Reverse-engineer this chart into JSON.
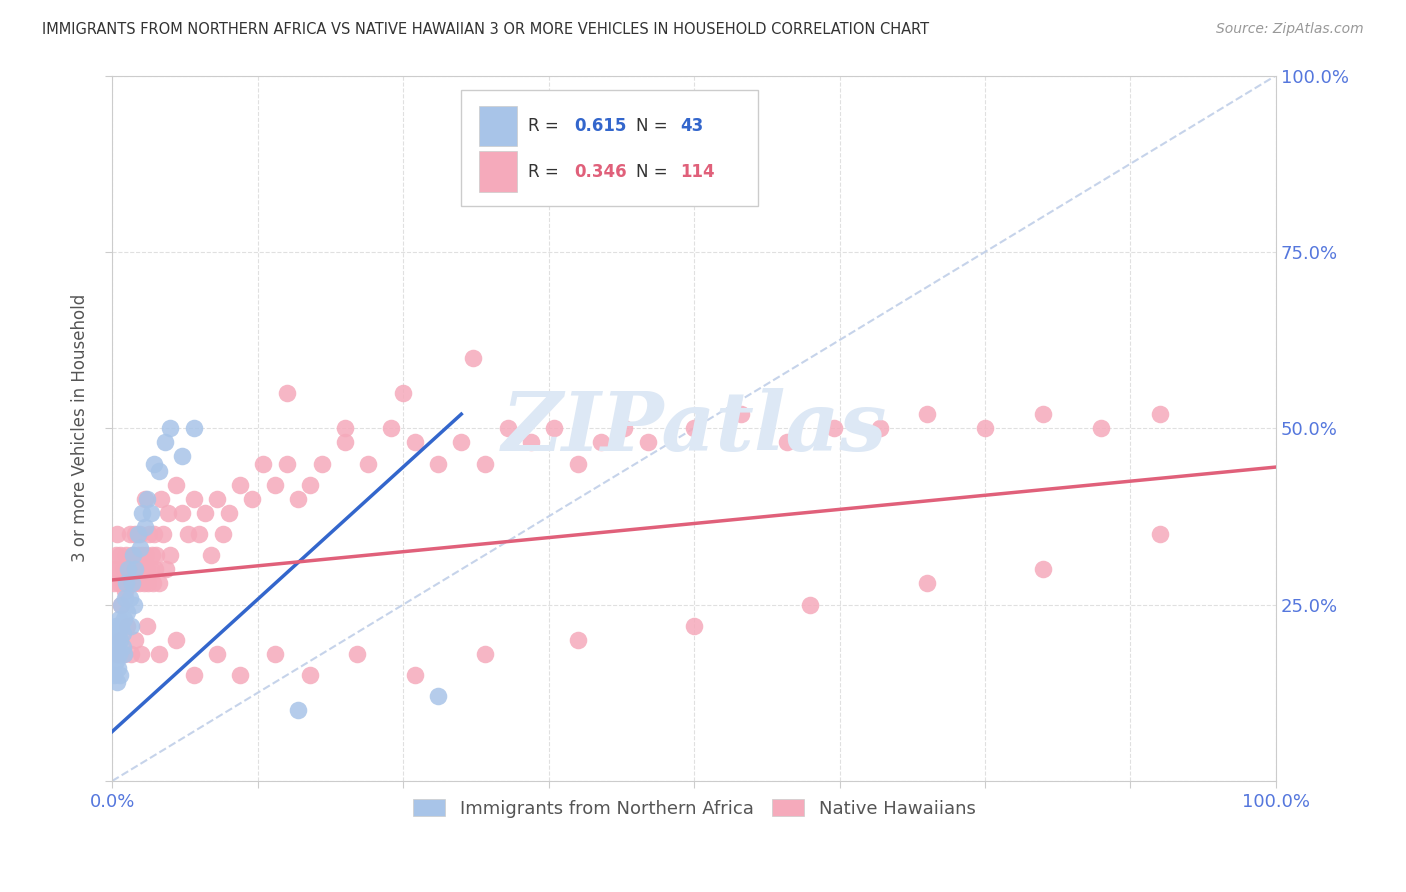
{
  "title": "IMMIGRANTS FROM NORTHERN AFRICA VS NATIVE HAWAIIAN 3 OR MORE VEHICLES IN HOUSEHOLD CORRELATION CHART",
  "source": "Source: ZipAtlas.com",
  "ylabel": "3 or more Vehicles in Household",
  "ytick_labels": [
    "",
    "25.0%",
    "50.0%",
    "75.0%",
    "100.0%"
  ],
  "ytick_vals": [
    0.0,
    0.25,
    0.5,
    0.75,
    1.0
  ],
  "xtick_vals": [
    0.0,
    0.125,
    0.25,
    0.375,
    0.5,
    0.625,
    0.75,
    0.875,
    1.0
  ],
  "xlim": [
    0.0,
    1.0
  ],
  "ylim": [
    0.0,
    1.0
  ],
  "blue_R": 0.615,
  "blue_N": 43,
  "pink_R": 0.346,
  "pink_N": 114,
  "blue_color": "#a8c4e8",
  "pink_color": "#f5aabb",
  "blue_line_color": "#3366cc",
  "pink_line_color": "#e0607a",
  "diag_line_color": "#c0cfe8",
  "watermark_text": "ZIPatlas",
  "watermark_color": "#dde8f5",
  "title_color": "#333333",
  "right_axis_color": "#5577dd",
  "bottom_axis_color": "#5577dd",
  "legend_label1": "Immigrants from Northern Africa",
  "legend_label2": "Native Hawaiians",
  "blue_scatter_x": [
    0.001,
    0.002,
    0.002,
    0.003,
    0.003,
    0.004,
    0.004,
    0.005,
    0.005,
    0.006,
    0.006,
    0.007,
    0.007,
    0.008,
    0.008,
    0.009,
    0.009,
    0.01,
    0.01,
    0.011,
    0.012,
    0.013,
    0.014,
    0.015,
    0.016,
    0.017,
    0.018,
    0.019,
    0.02,
    0.022,
    0.024,
    0.026,
    0.028,
    0.03,
    0.033,
    0.036,
    0.04,
    0.045,
    0.05,
    0.06,
    0.07,
    0.16,
    0.28
  ],
  "blue_scatter_y": [
    0.18,
    0.2,
    0.15,
    0.22,
    0.17,
    0.19,
    0.14,
    0.21,
    0.16,
    0.23,
    0.18,
    0.2,
    0.15,
    0.22,
    0.25,
    0.19,
    0.21,
    0.23,
    0.18,
    0.26,
    0.28,
    0.24,
    0.3,
    0.26,
    0.22,
    0.28,
    0.32,
    0.25,
    0.3,
    0.35,
    0.33,
    0.38,
    0.36,
    0.4,
    0.38,
    0.45,
    0.44,
    0.48,
    0.5,
    0.46,
    0.5,
    0.1,
    0.12
  ],
  "pink_scatter_x": [
    0.001,
    0.002,
    0.003,
    0.004,
    0.005,
    0.006,
    0.007,
    0.008,
    0.009,
    0.01,
    0.011,
    0.012,
    0.013,
    0.014,
    0.015,
    0.016,
    0.017,
    0.018,
    0.019,
    0.02,
    0.021,
    0.022,
    0.023,
    0.024,
    0.025,
    0.026,
    0.027,
    0.028,
    0.029,
    0.03,
    0.031,
    0.032,
    0.033,
    0.034,
    0.035,
    0.036,
    0.037,
    0.038,
    0.04,
    0.042,
    0.044,
    0.046,
    0.048,
    0.05,
    0.055,
    0.06,
    0.065,
    0.07,
    0.075,
    0.08,
    0.085,
    0.09,
    0.095,
    0.1,
    0.11,
    0.12,
    0.13,
    0.14,
    0.15,
    0.16,
    0.17,
    0.18,
    0.2,
    0.22,
    0.24,
    0.26,
    0.28,
    0.3,
    0.32,
    0.34,
    0.36,
    0.38,
    0.4,
    0.42,
    0.44,
    0.46,
    0.5,
    0.54,
    0.58,
    0.62,
    0.66,
    0.7,
    0.75,
    0.8,
    0.85,
    0.9,
    0.004,
    0.007,
    0.01,
    0.013,
    0.016,
    0.02,
    0.025,
    0.03,
    0.04,
    0.055,
    0.07,
    0.09,
    0.11,
    0.14,
    0.17,
    0.21,
    0.26,
    0.32,
    0.4,
    0.5,
    0.6,
    0.7,
    0.8,
    0.9,
    0.15,
    0.2,
    0.25,
    0.31
  ],
  "pink_scatter_y": [
    0.3,
    0.28,
    0.32,
    0.35,
    0.3,
    0.28,
    0.32,
    0.25,
    0.28,
    0.3,
    0.27,
    0.32,
    0.29,
    0.3,
    0.35,
    0.28,
    0.32,
    0.3,
    0.28,
    0.35,
    0.3,
    0.32,
    0.28,
    0.35,
    0.3,
    0.32,
    0.28,
    0.4,
    0.32,
    0.3,
    0.28,
    0.35,
    0.3,
    0.32,
    0.28,
    0.35,
    0.3,
    0.32,
    0.28,
    0.4,
    0.35,
    0.3,
    0.38,
    0.32,
    0.42,
    0.38,
    0.35,
    0.4,
    0.35,
    0.38,
    0.32,
    0.4,
    0.35,
    0.38,
    0.42,
    0.4,
    0.45,
    0.42,
    0.45,
    0.4,
    0.42,
    0.45,
    0.48,
    0.45,
    0.5,
    0.48,
    0.45,
    0.48,
    0.45,
    0.5,
    0.48,
    0.5,
    0.45,
    0.48,
    0.5,
    0.48,
    0.5,
    0.52,
    0.48,
    0.5,
    0.5,
    0.52,
    0.5,
    0.52,
    0.5,
    0.52,
    0.18,
    0.2,
    0.18,
    0.22,
    0.18,
    0.2,
    0.18,
    0.22,
    0.18,
    0.2,
    0.15,
    0.18,
    0.15,
    0.18,
    0.15,
    0.18,
    0.15,
    0.18,
    0.2,
    0.22,
    0.25,
    0.28,
    0.3,
    0.35,
    0.55,
    0.5,
    0.55,
    0.6
  ],
  "background_color": "#ffffff",
  "grid_color": "#e0e0e0"
}
